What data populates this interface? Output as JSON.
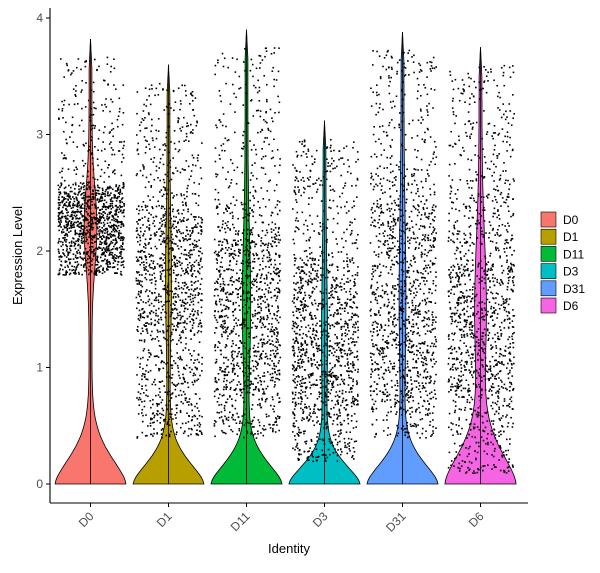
{
  "chart_data": {
    "type": "violin",
    "xlabel": "Identity",
    "ylabel": "Expression Level",
    "ylim": [
      0,
      4
    ],
    "yticks": [
      0,
      1,
      2,
      3,
      4
    ],
    "grid": false,
    "legend_position": "right",
    "categories": [
      "D0",
      "D1",
      "D11",
      "D3",
      "D31",
      "D6"
    ],
    "colors": [
      "#F8766D",
      "#B79F00",
      "#00BA38",
      "#00BFC4",
      "#619CFF",
      "#F564E3"
    ],
    "series": [
      {
        "name": "D0",
        "max": 3.82,
        "main_band": [
          1.8,
          2.6
        ],
        "density_cluster": [
          2.0,
          2.5
        ]
      },
      {
        "name": "D1",
        "max": 3.6,
        "main_band": [
          0.4,
          2.5
        ],
        "density_cluster": [
          1.3,
          2.3
        ]
      },
      {
        "name": "D11",
        "max": 3.9,
        "main_band": [
          0.4,
          2.4
        ],
        "density_cluster": [
          0.8,
          2.2
        ]
      },
      {
        "name": "D3",
        "max": 3.12,
        "main_band": [
          0.2,
          2.0
        ],
        "density_cluster": [
          0.6,
          1.8
        ]
      },
      {
        "name": "D31",
        "max": 3.88,
        "main_band": [
          0.4,
          2.7
        ],
        "density_cluster": [
          0.7,
          2.4
        ]
      },
      {
        "name": "D6",
        "max": 3.75,
        "main_band": [
          0.1,
          2.5
        ],
        "density_cluster": [
          0.8,
          1.9
        ]
      }
    ]
  }
}
